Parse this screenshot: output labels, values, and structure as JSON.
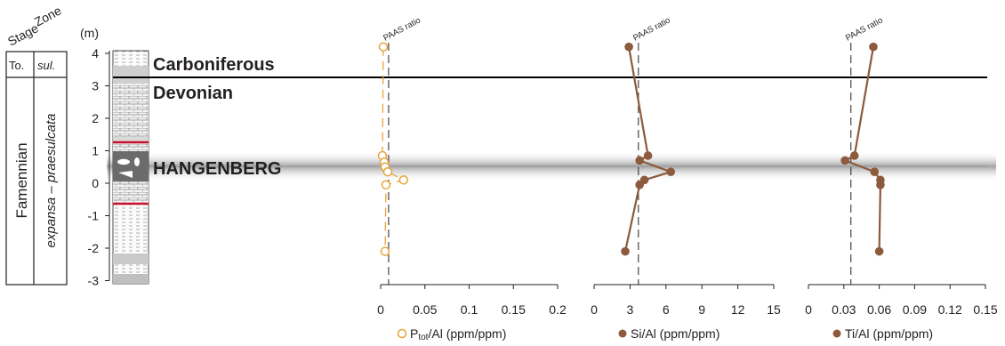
{
  "colors": {
    "p_series": "#e8a43a",
    "si_ti_series": "#8c5a3c",
    "hangenberg_band": "#9b9b9b",
    "red_marker": "#c8102e"
  },
  "strat": {
    "stage_header": "Stage",
    "zone_header": "Zone",
    "unit_label": "(m)",
    "upper_stage": "To.",
    "upper_zone": "sul.",
    "lower_stage": "Famennian",
    "lower_zone": "expansa – praesulcata",
    "boundary_upper": "Carboniferous",
    "boundary_lower": "Devonian",
    "event_label": "HANGENBERG"
  },
  "chart_data": [
    {
      "type": "scatter",
      "name": "p",
      "marker": "open-circle",
      "ylabel": "(m)",
      "ylim": [
        -3,
        4
      ],
      "yticks": [
        "-3",
        "-2",
        "-1",
        "0",
        "1",
        "2",
        "3",
        "4"
      ],
      "xlim": [
        0,
        0.2
      ],
      "xticks": [
        "0",
        "0.05",
        "0.1",
        "0.15",
        "0.2"
      ],
      "xlabel_main": "P",
      "xlabel_sub": "tot",
      "xlabel_rest": "/Al (ppm/ppm)",
      "reference_label": "PAAS ratio",
      "reference_x": 0.009,
      "points": [
        {
          "x": 0.003,
          "y": 4.2
        },
        {
          "x": 0.002,
          "y": 0.85
        },
        {
          "x": 0.004,
          "y": 0.65
        },
        {
          "x": 0.005,
          "y": 0.5
        },
        {
          "x": 0.008,
          "y": 0.35
        },
        {
          "x": 0.026,
          "y": 0.1
        },
        {
          "x": 0.006,
          "y": -0.05
        },
        {
          "x": 0.005,
          "y": -2.1
        }
      ]
    },
    {
      "type": "line",
      "name": "si",
      "marker": "filled-circle",
      "xlim": [
        0,
        15
      ],
      "xticks": [
        "0",
        "3",
        "6",
        "9",
        "12",
        "15"
      ],
      "xlabel": "Si/Al (ppm/ppm)",
      "reference_label": "PAAS ratio",
      "reference_x": 3.7,
      "points": [
        {
          "x": 2.9,
          "y": 4.2
        },
        {
          "x": 4.5,
          "y": 0.85
        },
        {
          "x": 3.8,
          "y": 0.7
        },
        {
          "x": 6.4,
          "y": 0.35
        },
        {
          "x": 4.2,
          "y": 0.1
        },
        {
          "x": 3.8,
          "y": -0.05
        },
        {
          "x": 2.6,
          "y": -2.1
        }
      ]
    },
    {
      "type": "line",
      "name": "ti",
      "marker": "filled-circle",
      "xlim": [
        0,
        0.15
      ],
      "xticks": [
        "0",
        "0.03",
        "0.06",
        "0.09",
        "0.12",
        "0.15"
      ],
      "xlabel": "Ti/Al (ppm/ppm)",
      "reference_label": "PAAS ratio",
      "reference_x": 0.036,
      "points": [
        {
          "x": 0.055,
          "y": 4.2
        },
        {
          "x": 0.039,
          "y": 0.85
        },
        {
          "x": 0.031,
          "y": 0.7
        },
        {
          "x": 0.056,
          "y": 0.35
        },
        {
          "x": 0.061,
          "y": 0.1
        },
        {
          "x": 0.061,
          "y": -0.05
        },
        {
          "x": 0.06,
          "y": -2.1
        }
      ]
    }
  ]
}
